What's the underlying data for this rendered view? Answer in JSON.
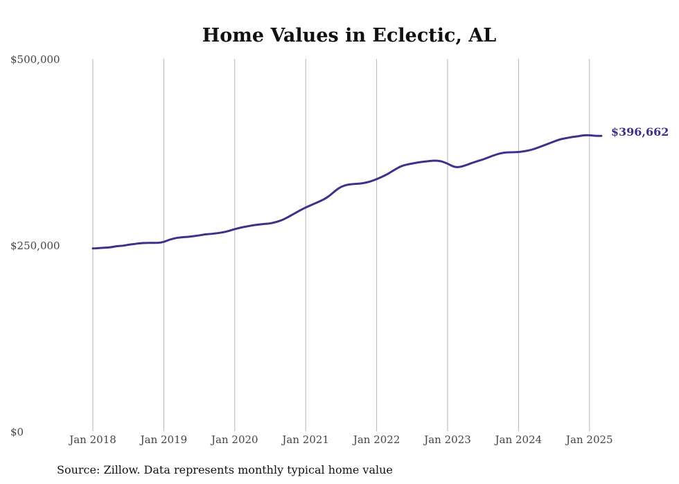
{
  "colors": {
    "line": "#3d3189",
    "grid": "#b4b4b4",
    "text": "#444444"
  },
  "source_text": "Source: Zillow. Data represents monthly typical home value",
  "chart_data": {
    "type": "line",
    "title": "Home Values in Eclectic, AL",
    "xlabel": "",
    "ylabel": "",
    "ylim": [
      0,
      500000
    ],
    "yticks": [
      0,
      250000,
      500000
    ],
    "ytick_labels": [
      "$0",
      "$250,000",
      "$500,000"
    ],
    "xtick_labels": [
      "Jan 2018",
      "Jan 2019",
      "Jan 2020",
      "Jan 2021",
      "Jan 2022",
      "Jan 2023",
      "Jan 2024",
      "Jan 2025"
    ],
    "vertical_grid": true,
    "end_label": "$396,662",
    "series": [
      {
        "x": [
          "2018-01",
          "2018-02",
          "2018-03",
          "2018-04",
          "2018-05",
          "2018-06",
          "2018-07",
          "2018-08",
          "2018-09",
          "2018-10",
          "2018-11",
          "2018-12",
          "2019-01",
          "2019-02",
          "2019-03",
          "2019-04",
          "2019-05",
          "2019-06",
          "2019-07",
          "2019-08",
          "2019-09",
          "2019-10",
          "2019-11",
          "2019-12",
          "2020-01",
          "2020-02",
          "2020-03",
          "2020-04",
          "2020-05",
          "2020-06",
          "2020-07",
          "2020-08",
          "2020-09",
          "2020-10",
          "2020-11",
          "2020-12",
          "2021-01",
          "2021-02",
          "2021-03",
          "2021-04",
          "2021-05",
          "2021-06",
          "2021-07",
          "2021-08",
          "2021-09",
          "2021-10",
          "2021-11",
          "2021-12",
          "2022-01",
          "2022-02",
          "2022-03",
          "2022-04",
          "2022-05",
          "2022-06",
          "2022-07",
          "2022-08",
          "2022-09",
          "2022-10",
          "2022-11",
          "2022-12",
          "2023-01",
          "2023-02",
          "2023-03",
          "2023-04",
          "2023-05",
          "2023-06",
          "2023-07",
          "2023-08",
          "2023-09",
          "2023-10",
          "2023-11",
          "2023-12",
          "2024-01",
          "2024-02",
          "2024-03",
          "2024-04",
          "2024-05",
          "2024-06",
          "2024-07",
          "2024-08",
          "2024-09",
          "2024-10",
          "2024-11",
          "2024-12",
          "2025-01",
          "2025-02",
          "2025-03"
        ],
        "values": [
          245500,
          246000,
          246500,
          247000,
          248500,
          249000,
          250500,
          251500,
          252500,
          253000,
          253000,
          253000,
          254000,
          257500,
          259500,
          260500,
          261000,
          262000,
          263000,
          264500,
          265000,
          266000,
          267000,
          269000,
          271500,
          273500,
          275000,
          276500,
          277500,
          278500,
          279000,
          281000,
          283500,
          287500,
          292000,
          296500,
          300500,
          304000,
          307500,
          311000,
          316000,
          323000,
          328500,
          331000,
          332000,
          332500,
          333500,
          335500,
          338500,
          342000,
          346000,
          351000,
          355500,
          358000,
          359500,
          361000,
          362000,
          363000,
          363500,
          362500,
          359500,
          355000,
          354500,
          357000,
          360000,
          362500,
          365000,
          368000,
          371000,
          373500,
          374500,
          374500,
          375000,
          376000,
          377500,
          380000,
          383000,
          386000,
          389000,
          392000,
          393500,
          395000,
          396000,
          397500,
          397500,
          396662,
          396662
        ]
      }
    ]
  }
}
